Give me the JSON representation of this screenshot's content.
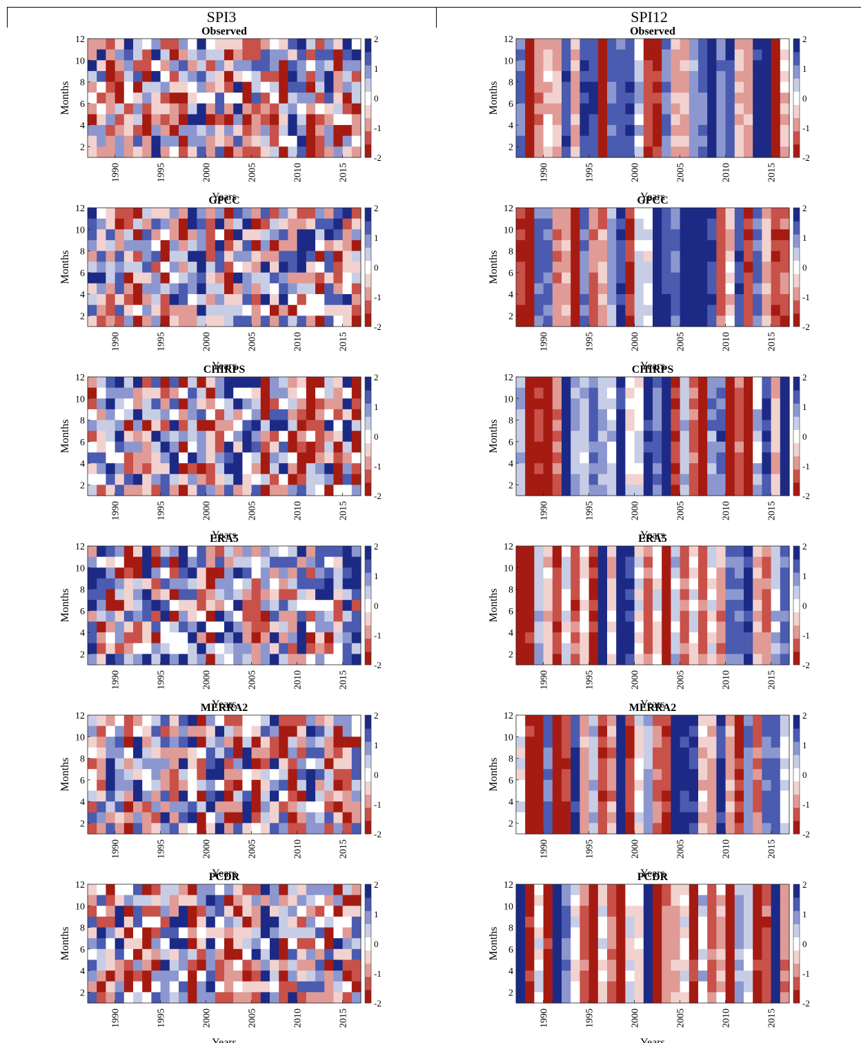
{
  "columns": [
    {
      "title": "SPI3"
    },
    {
      "title": "SPI12"
    }
  ],
  "palette": {
    "neg2": "#a51b12",
    "neg1_5": "#c8514a",
    "neg1": "#e09b96",
    "neg0_5": "#f2d2cf",
    "zero": "#ffffff",
    "pos0_5": "#c8cde6",
    "pos1": "#8c97cf",
    "pos1_5": "#4a5bb0",
    "pos2": "#1c2a86"
  },
  "chart_data": [
    {
      "type": "heatmap",
      "column": "SPI3",
      "title": "Observed",
      "xlabel": "Years",
      "ylabel": "Months",
      "xlim": [
        1987,
        2017
      ],
      "ylim": [
        1,
        12
      ],
      "xticks": [
        "1990",
        "1995",
        "2000",
        "2005",
        "2010",
        "2015"
      ],
      "yticks": [
        "2",
        "4",
        "6",
        "8",
        "10",
        "12"
      ],
      "colorbar_ticks": [
        "2",
        "1",
        "0",
        "-1",
        "-2"
      ],
      "clim": [
        -2,
        2
      ]
    },
    {
      "type": "heatmap",
      "column": "SPI12",
      "title": "Observed",
      "xlabel": "Years",
      "ylabel": "Months",
      "xlim": [
        1987,
        2017
      ],
      "ylim": [
        1,
        12
      ],
      "xticks": [
        "1990",
        "1995",
        "2000",
        "2005",
        "2010",
        "2015"
      ],
      "yticks": [
        "2",
        "4",
        "6",
        "8",
        "10",
        "12"
      ],
      "colorbar_ticks": [
        "2",
        "1",
        "0",
        "-1",
        "-2"
      ],
      "clim": [
        -2,
        2
      ]
    },
    {
      "type": "heatmap",
      "column": "SPI3",
      "title": "GPCC",
      "xlabel": "Years",
      "ylabel": "Months",
      "xlim": [
        1987,
        2017
      ],
      "ylim": [
        1,
        12
      ],
      "xticks": [
        "1990",
        "1995",
        "2000",
        "2005",
        "2010",
        "2015"
      ],
      "yticks": [
        "2",
        "4",
        "6",
        "8",
        "10",
        "12"
      ],
      "colorbar_ticks": [
        "2",
        "1",
        "0",
        "-1",
        "-2"
      ],
      "clim": [
        -2,
        2
      ]
    },
    {
      "type": "heatmap",
      "column": "SPI12",
      "title": "GPCC",
      "xlabel": "Years",
      "ylabel": "Months",
      "xlim": [
        1987,
        2017
      ],
      "ylim": [
        1,
        12
      ],
      "xticks": [
        "1990",
        "1995",
        "2000",
        "2005",
        "2010",
        "2015"
      ],
      "yticks": [
        "2",
        "4",
        "6",
        "8",
        "10",
        "12"
      ],
      "colorbar_ticks": [
        "2",
        "1",
        "0",
        "-1",
        "-2"
      ],
      "clim": [
        -2,
        2
      ]
    },
    {
      "type": "heatmap",
      "column": "SPI3",
      "title": "CHIRPS",
      "xlabel": "Years",
      "ylabel": "Months",
      "xlim": [
        1987,
        2017
      ],
      "ylim": [
        1,
        12
      ],
      "xticks": [
        "1990",
        "1995",
        "2000",
        "2005",
        "2010",
        "2015"
      ],
      "yticks": [
        "2",
        "4",
        "6",
        "8",
        "10",
        "12"
      ],
      "colorbar_ticks": [
        "2",
        "1",
        "0",
        "-1",
        "-2"
      ],
      "clim": [
        -2,
        2
      ]
    },
    {
      "type": "heatmap",
      "column": "SPI12",
      "title": "CHIRPS",
      "xlabel": "Years",
      "ylabel": "Months",
      "xlim": [
        1987,
        2017
      ],
      "ylim": [
        1,
        12
      ],
      "xticks": [
        "1990",
        "1995",
        "2000",
        "2005",
        "2010",
        "2015"
      ],
      "yticks": [
        "2",
        "4",
        "6",
        "8",
        "10",
        "12"
      ],
      "colorbar_ticks": [
        "2",
        "1",
        "0",
        "-1",
        "-2"
      ],
      "clim": [
        -2,
        2
      ]
    },
    {
      "type": "heatmap",
      "column": "SPI3",
      "title": "ERA5",
      "xlabel": "Years",
      "ylabel": "Months",
      "xlim": [
        1987,
        2017
      ],
      "ylim": [
        1,
        12
      ],
      "xticks": [
        "1990",
        "1995",
        "2000",
        "2005",
        "2010",
        "2015"
      ],
      "yticks": [
        "2",
        "4",
        "6",
        "8",
        "10",
        "12"
      ],
      "colorbar_ticks": [
        "2",
        "1",
        "0",
        "-1",
        "-2"
      ],
      "clim": [
        -2,
        2
      ]
    },
    {
      "type": "heatmap",
      "column": "SPI12",
      "title": "ERA5",
      "xlabel": "Years",
      "ylabel": "Months",
      "xlim": [
        1987,
        2017
      ],
      "ylim": [
        1,
        12
      ],
      "xticks": [
        "1990",
        "1995",
        "2000",
        "2005",
        "2010",
        "2015"
      ],
      "yticks": [
        "2",
        "4",
        "6",
        "8",
        "10",
        "12"
      ],
      "colorbar_ticks": [
        "2",
        "1",
        "0",
        "-1",
        "-2"
      ],
      "clim": [
        -2,
        2
      ]
    },
    {
      "type": "heatmap",
      "column": "SPI3",
      "title": "MERRA2",
      "xlabel": "Years",
      "ylabel": "Months",
      "xlim": [
        1987,
        2017
      ],
      "ylim": [
        1,
        12
      ],
      "xticks": [
        "1990",
        "1995",
        "2000",
        "2005",
        "2010",
        "2015"
      ],
      "yticks": [
        "2",
        "4",
        "6",
        "8",
        "10",
        "12"
      ],
      "colorbar_ticks": [
        "2",
        "1",
        "0",
        "-1",
        "-2"
      ],
      "clim": [
        -2,
        2
      ]
    },
    {
      "type": "heatmap",
      "column": "SPI12",
      "title": "MERRA2",
      "xlabel": "Years",
      "ylabel": "Months",
      "xlim": [
        1987,
        2017
      ],
      "ylim": [
        1,
        12
      ],
      "xticks": [
        "1990",
        "1995",
        "2000",
        "2005",
        "2010",
        "2015"
      ],
      "yticks": [
        "2",
        "4",
        "6",
        "8",
        "10",
        "12"
      ],
      "colorbar_ticks": [
        "2",
        "1",
        "0",
        "-1",
        "-2"
      ],
      "clim": [
        -2,
        2
      ]
    },
    {
      "type": "heatmap",
      "column": "SPI3",
      "title": "PCDR",
      "xlabel": "Years",
      "ylabel": "Months",
      "xlim": [
        1987,
        2017
      ],
      "ylim": [
        1,
        12
      ],
      "xticks": [
        "1990",
        "1995",
        "2000",
        "2005",
        "2010",
        "2015"
      ],
      "yticks": [
        "2",
        "4",
        "6",
        "8",
        "10",
        "12"
      ],
      "colorbar_ticks": [
        "2",
        "1",
        "0",
        "-1",
        "-2"
      ],
      "clim": [
        -2,
        2
      ]
    },
    {
      "type": "heatmap",
      "column": "SPI12",
      "title": "PCDR",
      "xlabel": "Years",
      "ylabel": "Months",
      "xlim": [
        1987,
        2017
      ],
      "ylim": [
        1,
        12
      ],
      "xticks": [
        "1990",
        "1995",
        "2000",
        "2005",
        "2010",
        "2015"
      ],
      "yticks": [
        "2",
        "4",
        "6",
        "8",
        "10",
        "12"
      ],
      "colorbar_ticks": [
        "2",
        "1",
        "0",
        "-1",
        "-2"
      ],
      "clim": [
        -2,
        2
      ]
    }
  ]
}
